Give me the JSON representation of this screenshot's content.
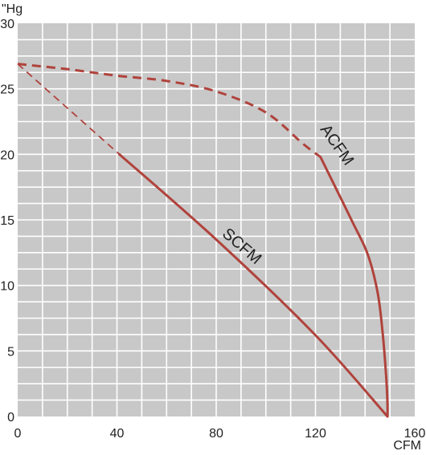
{
  "chart_data": {
    "type": "line",
    "title": "",
    "xlabel": "CFM",
    "ylabel": "\"Hg",
    "xlim": [
      0,
      160
    ],
    "ylim": [
      0,
      30
    ],
    "x_ticks": [
      "0",
      "40",
      "80",
      "120",
      "160"
    ],
    "y_ticks": [
      "0",
      "5",
      "10",
      "15",
      "20",
      "25",
      "30"
    ],
    "grid": true,
    "legend": "none",
    "colors": {
      "plot_background": "#c8c8c8",
      "grid": "#ffffff",
      "series": "#b0433c"
    },
    "series": [
      {
        "name": "ACFM",
        "dashed_points": [
          [
            0,
            26.9
          ],
          [
            20,
            26.5
          ],
          [
            40,
            26.0
          ],
          [
            60,
            25.6
          ],
          [
            80,
            24.8
          ],
          [
            100,
            23.2
          ],
          [
            115,
            20.8
          ],
          [
            122,
            19.8
          ]
        ],
        "solid_points": [
          [
            122,
            19.8
          ],
          [
            128,
            17.5
          ],
          [
            135,
            14.8
          ],
          [
            141,
            12.4
          ],
          [
            145,
            9.5
          ],
          [
            147,
            6.5
          ],
          [
            148.5,
            3.0
          ],
          [
            149,
            1.0
          ],
          [
            149,
            0
          ]
        ]
      },
      {
        "name": "SCFM",
        "dashed_points": [
          [
            0,
            26.9
          ],
          [
            41,
            20.0
          ]
        ],
        "solid_points": [
          [
            41,
            20.0
          ],
          [
            80,
            13.5
          ],
          [
            120,
            6.2
          ],
          [
            149,
            0
          ]
        ]
      }
    ],
    "annotations": [
      {
        "text": "ACFM",
        "x": 127,
        "y": 20.5,
        "angle": 55
      },
      {
        "text": "SCFM",
        "x": 89,
        "y": 12.7,
        "angle": 41
      }
    ]
  }
}
